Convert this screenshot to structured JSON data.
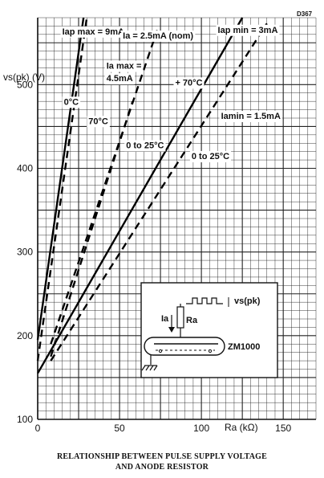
{
  "figure_code": "D367",
  "chart_data": {
    "type": "line",
    "title": "RELATIONSHIP BETWEEN PULSE SUPPLY VOLTAGE AND ANODE RESISTOR",
    "xlabel": "Ra (kΩ)",
    "ylabel": "vs(pk) (V)",
    "xlim": [
      0,
      170
    ],
    "ylim": [
      100,
      580
    ],
    "xticks": [
      0,
      50,
      100,
      150
    ],
    "yticks": [
      100,
      200,
      300,
      400,
      500
    ],
    "grid": true,
    "series": [
      {
        "name": "Iap max = 9mA, 0°C",
        "style": "solid",
        "x": [
          0,
          28
        ],
        "y": [
          195,
          580
        ]
      },
      {
        "name": "Iap max = 9mA, 70°C",
        "style": "dashed",
        "x": [
          0,
          30
        ],
        "y": [
          170,
          580
        ]
      },
      {
        "name": "Ia = 2.5mA (nom), 0 to 25°C",
        "style": "dashed",
        "x": [
          8,
          58
        ],
        "y": [
          175,
          480
        ]
      },
      {
        "name": "Ia max = 4.5mA, 0 to 25°C",
        "style": "dashed",
        "x": [
          8,
          73
        ],
        "y": [
          190,
          565
        ]
      },
      {
        "name": "Iap min = 3mA, +70°C",
        "style": "solid",
        "x": [
          0,
          125
        ],
        "y": [
          155,
          580
        ]
      },
      {
        "name": "Ia min = 1.5mA, 0 to 25°C",
        "style": "dashed",
        "x": [
          8,
          140
        ],
        "y": [
          170,
          573
        ]
      }
    ],
    "annotations": [
      {
        "text": "Iap max = 9mA",
        "x": 15,
        "y": 560
      },
      {
        "text": "Ia = 2.5mA (nom)",
        "x": 52,
        "y": 555
      },
      {
        "text": "Iap min = 3mA",
        "x": 110,
        "y": 562
      },
      {
        "text": "Ia max =",
        "x": 42,
        "y": 519
      },
      {
        "text": "4.5mA",
        "x": 42,
        "y": 504
      },
      {
        "text": "+ 70°C",
        "x": 84,
        "y": 499
      },
      {
        "text": "0°C",
        "x": 16,
        "y": 476
      },
      {
        "text": "70°C",
        "x": 31,
        "y": 453
      },
      {
        "text": "0 to 25°C",
        "x": 54,
        "y": 424
      },
      {
        "text": "Iamin = 1.5mA",
        "x": 112,
        "y": 459
      },
      {
        "text": "0 to 25°C",
        "x": 94,
        "y": 411
      }
    ]
  },
  "inset": {
    "vs_label": "vs(pk)",
    "ia_label": "Ia",
    "ra_label": "Ra",
    "tube_label": "ZM1000"
  },
  "caption": {
    "line1": "RELATIONSHIP BETWEEN PULSE SUPPLY VOLTAGE",
    "line2": "AND ANODE RESISTOR"
  }
}
